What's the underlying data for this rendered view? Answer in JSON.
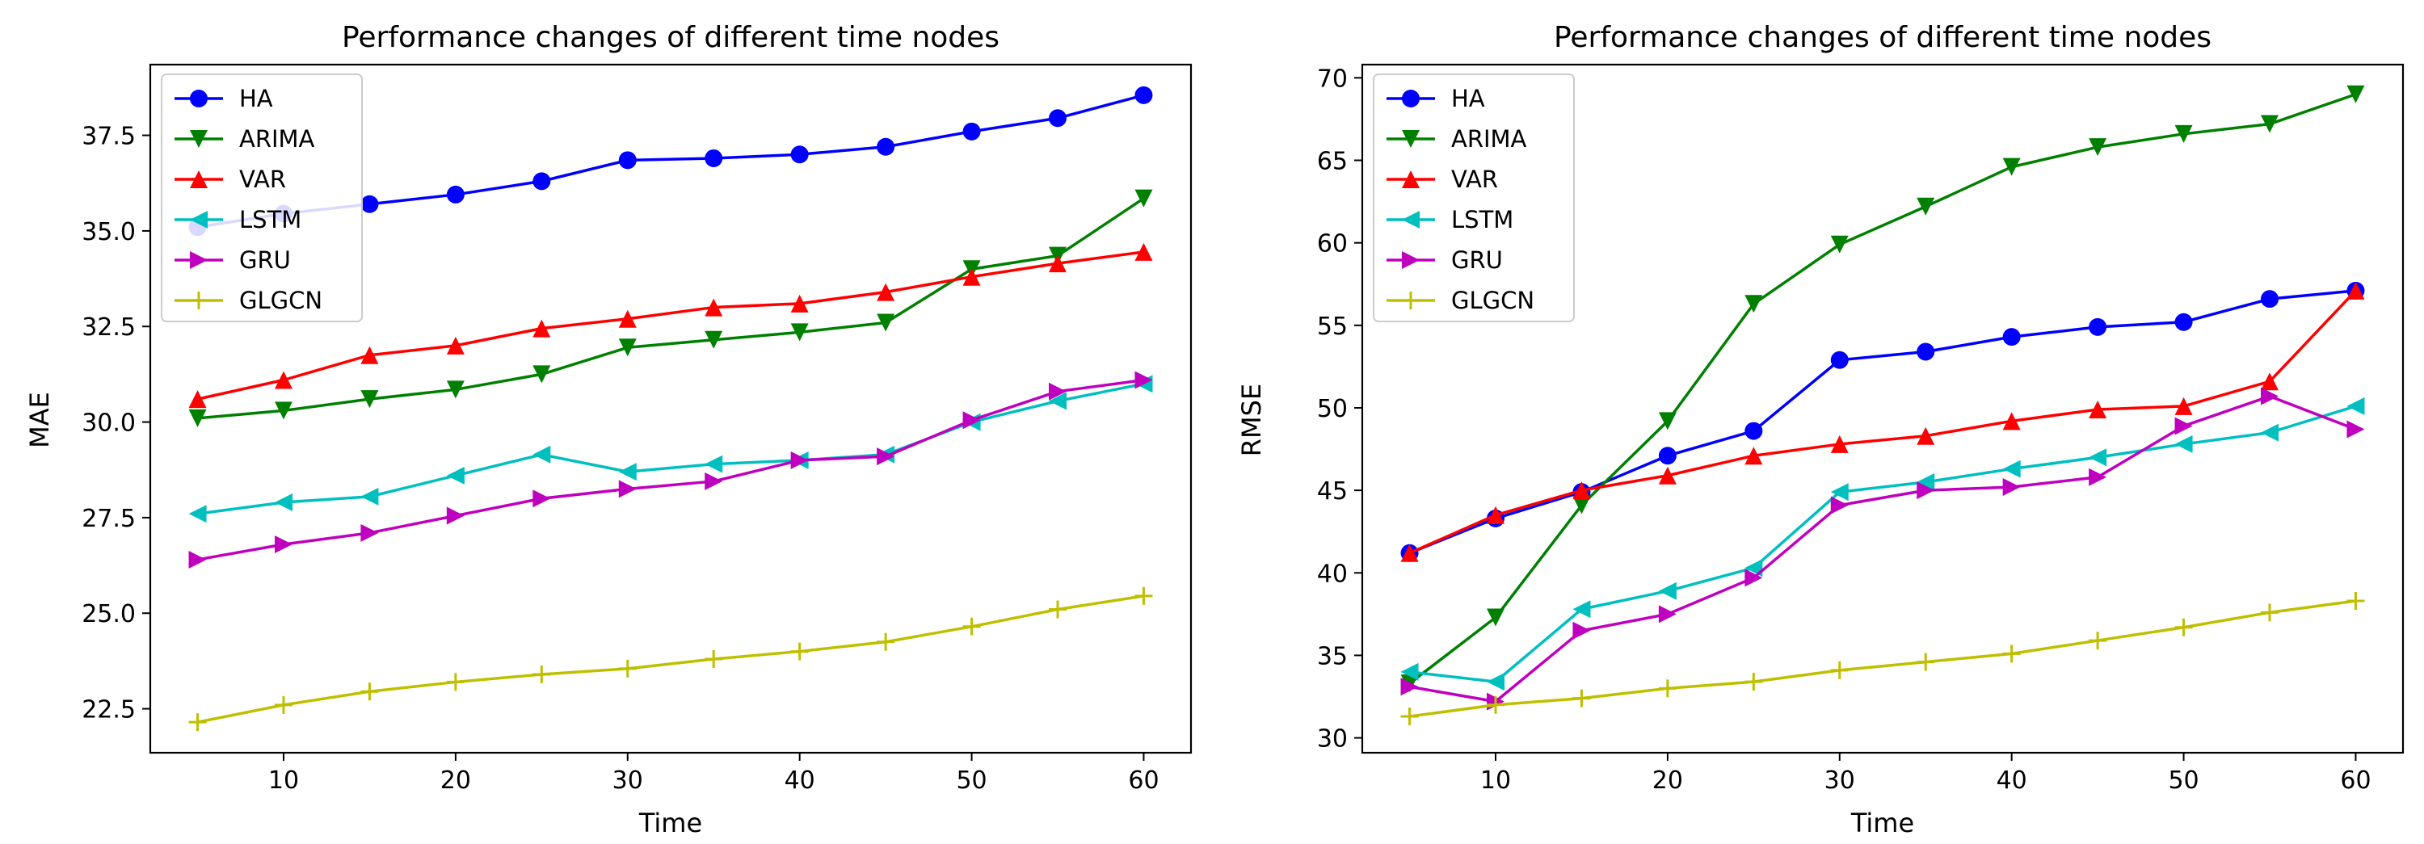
{
  "colors": {
    "HA": "#0000ff",
    "ARIMA": "#008000",
    "VAR": "#ff0000",
    "LSTM": "#00bfbf",
    "GRU": "#bf00bf",
    "GLGCN": "#bfbf00"
  },
  "chart_data": [
    {
      "type": "line",
      "title": "Performance changes of different time nodes",
      "xlabel": "Time",
      "ylabel": "MAE",
      "xlim": [
        2.25,
        62.75
      ],
      "ylim": [
        21.35,
        39.35
      ],
      "xticks": [
        10,
        20,
        30,
        40,
        50,
        60
      ],
      "yticks": [
        22.5,
        25.0,
        27.5,
        30.0,
        32.5,
        35.0,
        37.5
      ],
      "ytick_labels": [
        "22.5",
        "25.0",
        "27.5",
        "30.0",
        "32.5",
        "35.0",
        "37.5"
      ],
      "legend_position": "top-left",
      "x": [
        5,
        10,
        15,
        20,
        25,
        30,
        35,
        40,
        45,
        50,
        55,
        60
      ],
      "series": [
        {
          "name": "HA",
          "marker": "circle",
          "values": [
            35.1,
            35.45,
            35.7,
            35.95,
            36.3,
            36.85,
            36.9,
            37.0,
            37.2,
            37.6,
            37.95,
            38.55
          ]
        },
        {
          "name": "ARIMA",
          "marker": "triangle-down",
          "values": [
            30.1,
            30.3,
            30.6,
            30.85,
            31.25,
            31.95,
            32.15,
            32.35,
            32.6,
            34.0,
            34.35,
            35.85
          ]
        },
        {
          "name": "VAR",
          "marker": "triangle-up",
          "values": [
            30.6,
            31.1,
            31.75,
            32.0,
            32.45,
            32.7,
            33.0,
            33.1,
            33.4,
            33.8,
            34.15,
            34.45
          ]
        },
        {
          "name": "LSTM",
          "marker": "triangle-left",
          "values": [
            27.6,
            27.9,
            28.05,
            28.6,
            29.15,
            28.7,
            28.9,
            29.0,
            29.15,
            30.0,
            30.55,
            31.0
          ]
        },
        {
          "name": "GRU",
          "marker": "triangle-right",
          "values": [
            26.4,
            26.8,
            27.1,
            27.55,
            28.0,
            28.25,
            28.45,
            29.0,
            29.1,
            30.05,
            30.8,
            31.1
          ]
        },
        {
          "name": "GLGCN",
          "marker": "plus",
          "values": [
            22.15,
            22.6,
            22.95,
            23.2,
            23.4,
            23.55,
            23.8,
            24.0,
            24.25,
            24.65,
            25.1,
            25.45
          ]
        }
      ]
    },
    {
      "type": "line",
      "title": "Performance changes of different time nodes",
      "xlabel": "Time",
      "ylabel": "RMSE",
      "xlim": [
        2.25,
        62.75
      ],
      "ylim": [
        29.1,
        70.8
      ],
      "xticks": [
        10,
        20,
        30,
        40,
        50,
        60
      ],
      "yticks": [
        30,
        35,
        40,
        45,
        50,
        55,
        60,
        65,
        70
      ],
      "ytick_labels": [
        "30",
        "35",
        "40",
        "45",
        "50",
        "55",
        "60",
        "65",
        "70"
      ],
      "legend_position": "top-left",
      "x": [
        5,
        10,
        15,
        20,
        25,
        30,
        35,
        40,
        45,
        50,
        55,
        60
      ],
      "series": [
        {
          "name": "HA",
          "marker": "circle",
          "values": [
            41.2,
            43.3,
            44.9,
            47.1,
            48.6,
            52.9,
            53.4,
            54.3,
            54.9,
            55.2,
            56.6,
            57.1
          ]
        },
        {
          "name": "ARIMA",
          "marker": "triangle-down",
          "values": [
            33.3,
            37.3,
            44.1,
            49.2,
            56.3,
            59.9,
            62.2,
            64.6,
            65.8,
            66.6,
            67.2,
            69.0
          ]
        },
        {
          "name": "VAR",
          "marker": "triangle-up",
          "values": [
            41.2,
            43.5,
            45.0,
            45.9,
            47.1,
            47.8,
            48.3,
            49.2,
            49.9,
            50.1,
            51.6,
            57.1
          ]
        },
        {
          "name": "LSTM",
          "marker": "triangle-left",
          "values": [
            34.0,
            33.4,
            37.8,
            38.9,
            40.3,
            44.9,
            45.5,
            46.3,
            47.0,
            47.8,
            48.5,
            50.1
          ]
        },
        {
          "name": "GRU",
          "marker": "triangle-right",
          "values": [
            33.1,
            32.2,
            36.5,
            37.5,
            39.7,
            44.1,
            45.0,
            45.2,
            45.8,
            48.9,
            50.7,
            48.7
          ]
        },
        {
          "name": "GLGCN",
          "marker": "plus",
          "values": [
            31.3,
            32.0,
            32.4,
            33.0,
            33.4,
            34.1,
            34.6,
            35.1,
            35.9,
            36.7,
            37.6,
            38.3
          ]
        }
      ]
    }
  ]
}
